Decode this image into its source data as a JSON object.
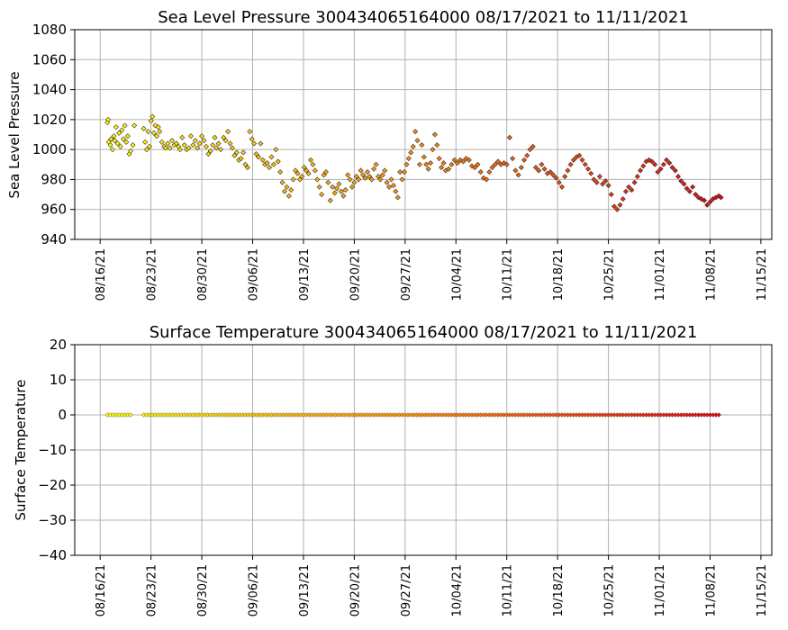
{
  "chart_data": [
    {
      "type": "scatter",
      "title": "Sea Level Pressure 300434065164000  08/17/2021 to 11/11/2021",
      "xlabel": "",
      "ylabel": "Sea Level Pressure",
      "ylim": [
        940,
        1080
      ],
      "yticks": [
        940,
        960,
        980,
        1000,
        1020,
        1040,
        1060,
        1080
      ],
      "xticks": [
        "08/16/21",
        "08/23/21",
        "08/30/21",
        "09/06/21",
        "09/13/21",
        "09/20/21",
        "09/27/21",
        "10/04/21",
        "10/11/21",
        "10/18/21",
        "10/25/21",
        "11/01/21",
        "11/08/21",
        "11/15/21"
      ],
      "x_unit": "days since 08/16/21",
      "xlim": [
        -3.5,
        92.5
      ],
      "grid": true,
      "colormap": [
        "#ffff00",
        "#ff8c00",
        "#e8000b"
      ],
      "series": [
        {
          "name": "pressure",
          "points": [
            [
              1.0,
              1018
            ],
            [
              1.1,
              1020
            ],
            [
              1.2,
              1005
            ],
            [
              1.4,
              1003
            ],
            [
              1.5,
              1007
            ],
            [
              1.7,
              1000
            ],
            [
              1.9,
              1009
            ],
            [
              2.0,
              1006
            ],
            [
              2.2,
              1015
            ],
            [
              2.4,
              1004
            ],
            [
              2.6,
              1011
            ],
            [
              2.8,
              1002
            ],
            [
              3.0,
              1013
            ],
            [
              3.2,
              1007
            ],
            [
              3.4,
              1016
            ],
            [
              3.6,
              1005
            ],
            [
              3.8,
              1009
            ],
            [
              4.0,
              997
            ],
            [
              4.2,
              999
            ],
            [
              4.5,
              1003
            ],
            [
              4.7,
              1016
            ],
            [
              6.0,
              1014
            ],
            [
              6.2,
              1005
            ],
            [
              6.4,
              1000
            ],
            [
              6.6,
              1012
            ],
            [
              6.8,
              1002
            ],
            [
              7.0,
              1019
            ],
            [
              7.2,
              1022
            ],
            [
              7.4,
              1011
            ],
            [
              7.6,
              1016
            ],
            [
              7.8,
              1009
            ],
            [
              8.0,
              1015
            ],
            [
              8.2,
              1012
            ],
            [
              8.5,
              1005
            ],
            [
              8.8,
              1002
            ],
            [
              9.0,
              1001
            ],
            [
              9.3,
              1004
            ],
            [
              9.6,
              1001
            ],
            [
              9.9,
              1006
            ],
            [
              10.2,
              1003
            ],
            [
              10.5,
              1004
            ],
            [
              10.8,
              1002
            ],
            [
              11.0,
              1000
            ],
            [
              11.3,
              1008
            ],
            [
              11.6,
              1003
            ],
            [
              11.9,
              1000
            ],
            [
              12.2,
              1001
            ],
            [
              12.5,
              1009
            ],
            [
              12.8,
              1003
            ],
            [
              13.1,
              1006
            ],
            [
              13.4,
              1001
            ],
            [
              13.7,
              1004
            ],
            [
              14.0,
              1009
            ],
            [
              14.3,
              1006
            ],
            [
              14.6,
              1002
            ],
            [
              14.9,
              997
            ],
            [
              15.2,
              999
            ],
            [
              15.5,
              1003
            ],
            [
              15.8,
              1008
            ],
            [
              16.0,
              1001
            ],
            [
              16.3,
              1004
            ],
            [
              16.6,
              1000
            ],
            [
              17.0,
              1008
            ],
            [
              17.3,
              1006
            ],
            [
              17.6,
              1012
            ],
            [
              17.9,
              1004
            ],
            [
              18.2,
              1001
            ],
            [
              18.5,
              996
            ],
            [
              18.8,
              998
            ],
            [
              19.1,
              993
            ],
            [
              19.4,
              994
            ],
            [
              19.7,
              998
            ],
            [
              20.0,
              990
            ],
            [
              20.3,
              988
            ],
            [
              20.6,
              1012
            ],
            [
              20.9,
              1007
            ],
            [
              21.2,
              1004
            ],
            [
              21.5,
              997
            ],
            [
              21.8,
              995
            ],
            [
              22.1,
              1004
            ],
            [
              22.4,
              993
            ],
            [
              22.7,
              990
            ],
            [
              23.0,
              991
            ],
            [
              23.3,
              988
            ],
            [
              23.6,
              995
            ],
            [
              23.9,
              990
            ],
            [
              24.2,
              1000
            ],
            [
              24.5,
              992
            ],
            [
              24.8,
              985
            ],
            [
              25.1,
              978
            ],
            [
              25.4,
              972
            ],
            [
              25.7,
              975
            ],
            [
              26.0,
              969
            ],
            [
              26.3,
              973
            ],
            [
              26.6,
              980
            ],
            [
              26.9,
              986
            ],
            [
              27.2,
              984
            ],
            [
              27.5,
              980
            ],
            [
              27.8,
              982
            ],
            [
              28.1,
              988
            ],
            [
              28.4,
              986
            ],
            [
              28.7,
              984
            ],
            [
              29.0,
              993
            ],
            [
              29.3,
              990
            ],
            [
              29.6,
              986
            ],
            [
              29.9,
              980
            ],
            [
              30.2,
              975
            ],
            [
              30.5,
              970
            ],
            [
              30.8,
              983
            ],
            [
              31.1,
              985
            ],
            [
              31.4,
              978
            ],
            [
              31.7,
              966
            ],
            [
              32.0,
              975
            ],
            [
              32.3,
              971
            ],
            [
              32.6,
              974
            ],
            [
              32.9,
              977
            ],
            [
              33.2,
              972
            ],
            [
              33.5,
              969
            ],
            [
              33.8,
              973
            ],
            [
              34.1,
              983
            ],
            [
              34.4,
              980
            ],
            [
              34.7,
              975
            ],
            [
              35.0,
              978
            ],
            [
              35.3,
              982
            ],
            [
              35.6,
              980
            ],
            [
              35.9,
              986
            ],
            [
              36.2,
              983
            ],
            [
              36.5,
              981
            ],
            [
              36.8,
              985
            ],
            [
              37.1,
              982
            ],
            [
              37.4,
              980
            ],
            [
              37.7,
              987
            ],
            [
              38.0,
              990
            ],
            [
              38.3,
              982
            ],
            [
              38.6,
              980
            ],
            [
              38.9,
              983
            ],
            [
              39.2,
              986
            ],
            [
              39.5,
              978
            ],
            [
              39.8,
              975
            ],
            [
              40.1,
              980
            ],
            [
              40.4,
              976
            ],
            [
              40.7,
              972
            ],
            [
              41.0,
              968
            ],
            [
              41.3,
              985
            ],
            [
              41.6,
              980
            ],
            [
              41.9,
              985
            ],
            [
              42.2,
              990
            ],
            [
              42.5,
              994
            ],
            [
              42.8,
              998
            ],
            [
              43.1,
              1002
            ],
            [
              43.4,
              1012
            ],
            [
              43.7,
              1006
            ],
            [
              44.0,
              990
            ],
            [
              44.3,
              1003
            ],
            [
              44.6,
              995
            ],
            [
              44.9,
              990
            ],
            [
              45.2,
              987
            ],
            [
              45.5,
              991
            ],
            [
              45.8,
              1000
            ],
            [
              46.1,
              1010
            ],
            [
              46.4,
              1003
            ],
            [
              46.7,
              994
            ],
            [
              47.0,
              988
            ],
            [
              47.3,
              991
            ],
            [
              47.6,
              986
            ],
            [
              48.0,
              987
            ],
            [
              48.4,
              990
            ],
            [
              48.8,
              993
            ],
            [
              49.2,
              991
            ],
            [
              49.6,
              993
            ],
            [
              50.0,
              992
            ],
            [
              50.4,
              994
            ],
            [
              50.8,
              993
            ],
            [
              51.2,
              989
            ],
            [
              51.6,
              988
            ],
            [
              52.0,
              990
            ],
            [
              52.4,
              985
            ],
            [
              52.8,
              981
            ],
            [
              53.2,
              980
            ],
            [
              53.6,
              985
            ],
            [
              54.0,
              988
            ],
            [
              54.4,
              990
            ],
            [
              54.8,
              992
            ],
            [
              55.2,
              990
            ],
            [
              55.6,
              991
            ],
            [
              56.0,
              990
            ],
            [
              56.4,
              1008
            ],
            [
              56.8,
              994
            ],
            [
              57.2,
              986
            ],
            [
              57.6,
              983
            ],
            [
              58.0,
              988
            ],
            [
              58.4,
              993
            ],
            [
              58.8,
              996
            ],
            [
              59.2,
              1000
            ],
            [
              59.6,
              1002
            ],
            [
              60.0,
              988
            ],
            [
              60.4,
              986
            ],
            [
              60.8,
              990
            ],
            [
              61.2,
              987
            ],
            [
              61.6,
              984
            ],
            [
              62.0,
              985
            ],
            [
              62.4,
              983
            ],
            [
              62.8,
              981
            ],
            [
              63.2,
              978
            ],
            [
              63.6,
              975
            ],
            [
              64.0,
              982
            ],
            [
              64.4,
              986
            ],
            [
              64.8,
              990
            ],
            [
              65.2,
              993
            ],
            [
              65.6,
              995
            ],
            [
              66.0,
              996
            ],
            [
              66.4,
              993
            ],
            [
              66.8,
              990
            ],
            [
              67.2,
              987
            ],
            [
              67.6,
              984
            ],
            [
              68.0,
              980
            ],
            [
              68.4,
              978
            ],
            [
              68.8,
              982
            ],
            [
              69.2,
              977
            ],
            [
              69.6,
              979
            ],
            [
              70.0,
              976
            ],
            [
              70.4,
              970
            ],
            [
              70.8,
              962
            ],
            [
              71.2,
              960
            ],
            [
              71.6,
              963
            ],
            [
              72.0,
              967
            ],
            [
              72.4,
              972
            ],
            [
              72.8,
              975
            ],
            [
              73.2,
              973
            ],
            [
              73.6,
              978
            ],
            [
              74.0,
              982
            ],
            [
              74.4,
              986
            ],
            [
              74.8,
              989
            ],
            [
              75.2,
              992
            ],
            [
              75.6,
              993
            ],
            [
              76.0,
              992
            ],
            [
              76.4,
              990
            ],
            [
              76.8,
              985
            ],
            [
              77.2,
              987
            ],
            [
              77.6,
              990
            ],
            [
              78.0,
              993
            ],
            [
              78.4,
              991
            ],
            [
              78.8,
              988
            ],
            [
              79.2,
              986
            ],
            [
              79.6,
              982
            ],
            [
              80.0,
              979
            ],
            [
              80.4,
              977
            ],
            [
              80.8,
              974
            ],
            [
              81.2,
              972
            ],
            [
              81.6,
              975
            ],
            [
              82.0,
              970
            ],
            [
              82.4,
              968
            ],
            [
              82.8,
              967
            ],
            [
              83.2,
              966
            ],
            [
              83.6,
              963
            ],
            [
              84.0,
              965
            ],
            [
              84.4,
              967
            ],
            [
              84.8,
              968
            ],
            [
              85.2,
              969
            ],
            [
              85.5,
              968
            ]
          ]
        }
      ]
    },
    {
      "type": "scatter",
      "title": "Surface Temperature 300434065164000  08/17/2021 to 11/11/2021",
      "xlabel": "",
      "ylabel": "Surface Temperature",
      "ylim": [
        -40,
        20
      ],
      "yticks": [
        -40,
        -30,
        -20,
        -10,
        0,
        10,
        20
      ],
      "ytick_labels": [
        "−40",
        "−30",
        "−20",
        "−10",
        "0",
        "10",
        "20"
      ],
      "xticks": [
        "08/16/21",
        "08/23/21",
        "08/30/21",
        "09/06/21",
        "09/13/21",
        "09/20/21",
        "09/27/21",
        "10/04/21",
        "10/11/21",
        "10/18/21",
        "10/25/21",
        "11/01/21",
        "11/08/21",
        "11/15/21"
      ],
      "x_unit": "days since 08/16/21",
      "xlim": [
        -3.5,
        92.5
      ],
      "grid": true,
      "colormap": [
        "#ffff00",
        "#ff8c00",
        "#e8000b"
      ],
      "series": [
        {
          "name": "temperature",
          "segments": [
            [
              1.0,
              4.5,
              0
            ],
            [
              6.0,
              85.5,
              0
            ]
          ]
        }
      ]
    }
  ]
}
